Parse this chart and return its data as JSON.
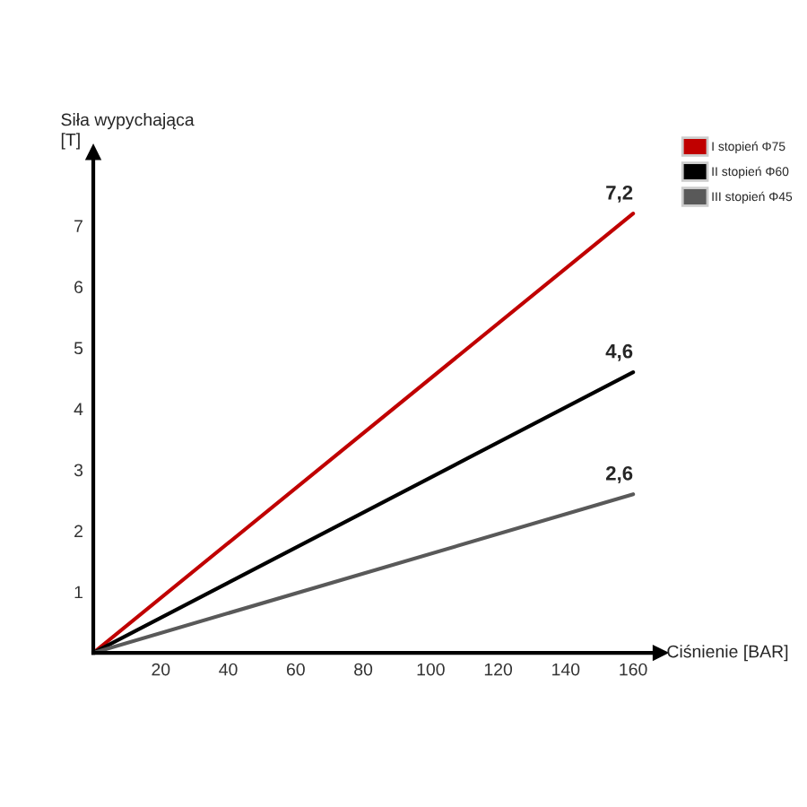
{
  "chart_data": {
    "type": "line",
    "xlabel": "Ciśnienie [BAR]",
    "ylabel": "Siła wypychająca\n[T]",
    "x": [
      0,
      160
    ],
    "series": [
      {
        "name": "I stopień Φ75",
        "color": "#c00000",
        "values": [
          0,
          7.2
        ],
        "value_labels": [
          null,
          "7,2"
        ]
      },
      {
        "name": "II stopień Φ60",
        "color": "#000000",
        "values": [
          0,
          4.6
        ],
        "value_labels": [
          null,
          "4,6"
        ]
      },
      {
        "name": "III stopień Φ45",
        "color": "#595959",
        "values": [
          0,
          2.6
        ],
        "value_labels": [
          null,
          "2,6"
        ]
      }
    ],
    "xlim": [
      0,
      168
    ],
    "ylim": [
      0,
      8.2
    ],
    "xticks": [
      20,
      40,
      60,
      80,
      100,
      120,
      140,
      160
    ],
    "yticks": [
      1,
      2,
      3,
      4,
      5,
      6,
      7
    ],
    "legend": "top right",
    "marker": "none",
    "line_style": "solid"
  }
}
